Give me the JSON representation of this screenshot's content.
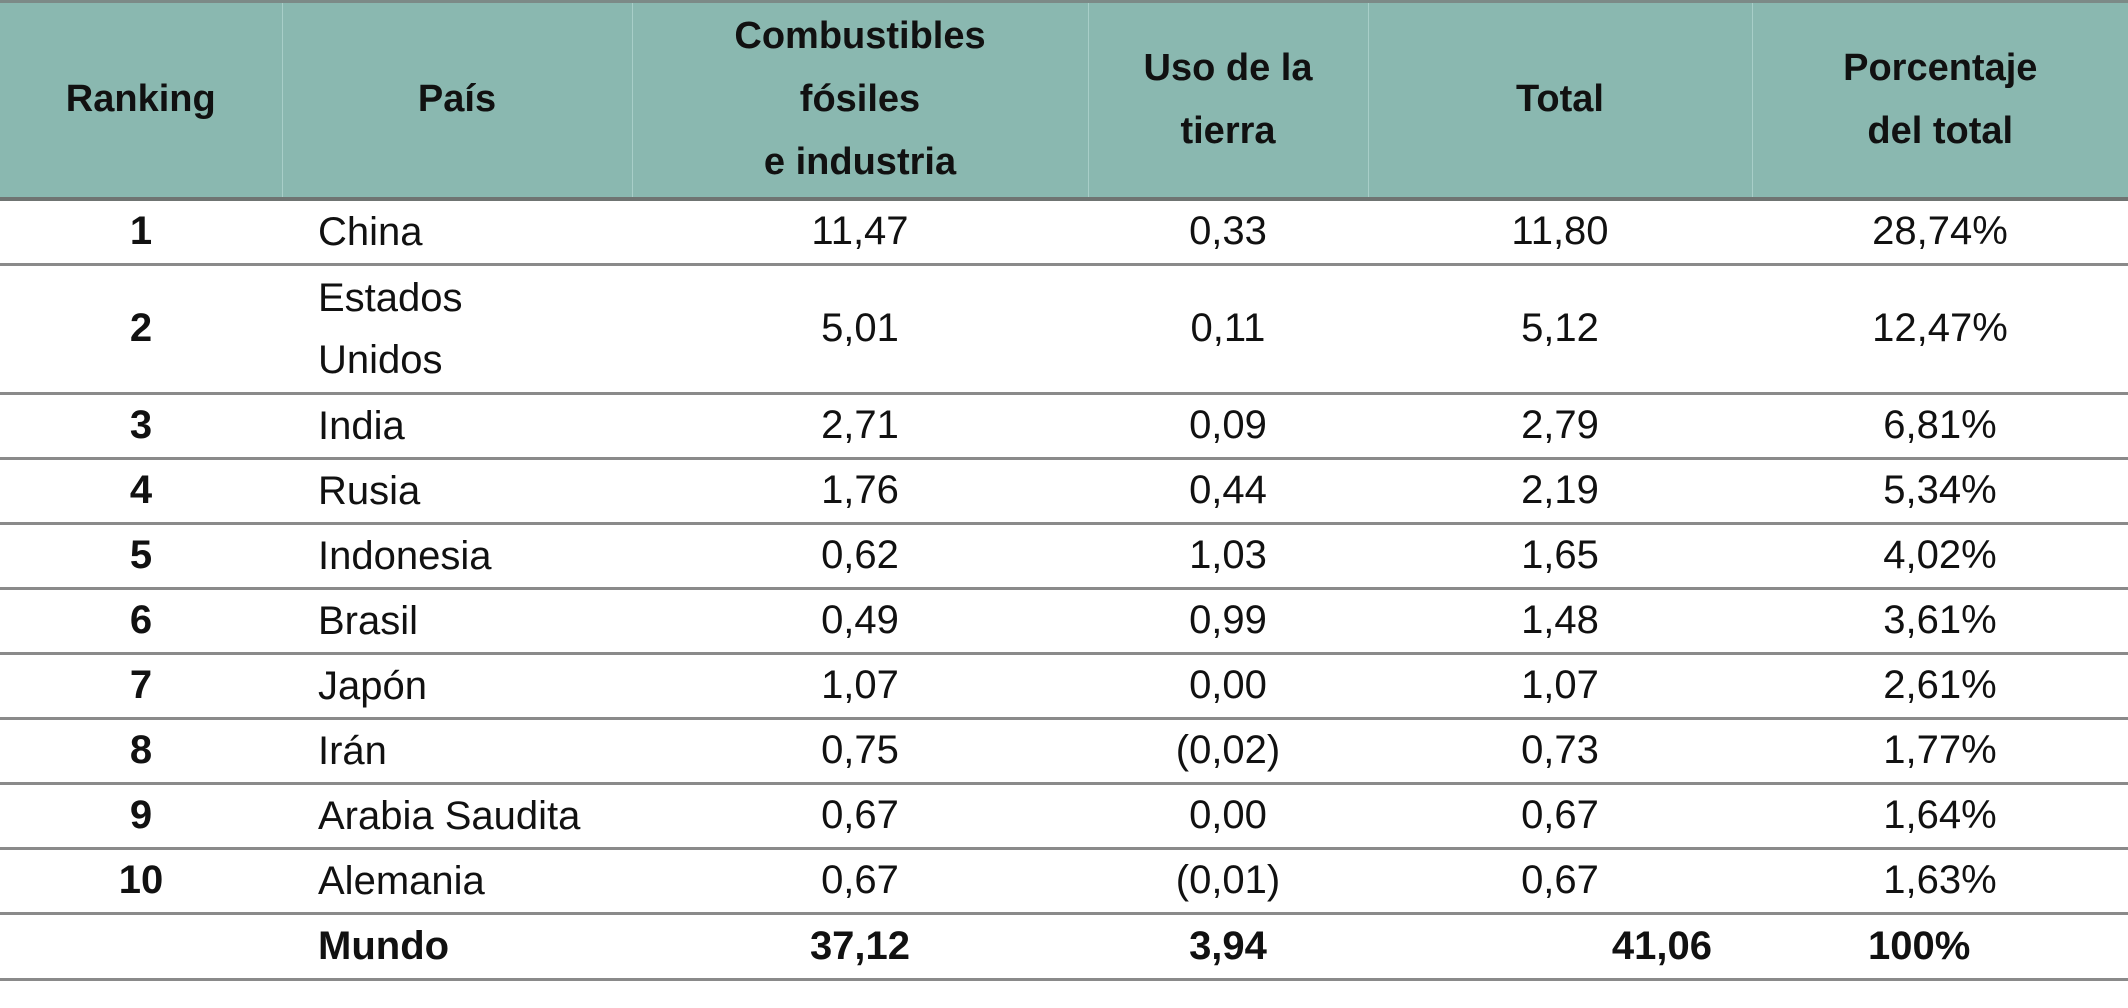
{
  "headers": {
    "ranking": "Ranking",
    "pais": "País",
    "combustibles": [
      "Combustibles",
      "fósiles",
      "e industria"
    ],
    "uso": [
      "Uso de la",
      "tierra"
    ],
    "total": "Total",
    "porcentaje": [
      "Porcentaje",
      "del total"
    ]
  },
  "rows": [
    {
      "rank": "1",
      "pais": [
        "China"
      ],
      "comb": "11,47",
      "uso": "0,33",
      "total": "11,80",
      "pct": "28,74%"
    },
    {
      "rank": "2",
      "pais": [
        "Estados",
        "Unidos"
      ],
      "comb": "5,01",
      "uso": "0,11",
      "total": "5,12",
      "pct": "12,47%"
    },
    {
      "rank": "3",
      "pais": [
        "India"
      ],
      "comb": "2,71",
      "uso": "0,09",
      "total": "2,79",
      "pct": "6,81%"
    },
    {
      "rank": "4",
      "pais": [
        "Rusia"
      ],
      "comb": "1,76",
      "uso": "0,44",
      "total": "2,19",
      "pct": "5,34%"
    },
    {
      "rank": "5",
      "pais": [
        "Indonesia"
      ],
      "comb": "0,62",
      "uso": "1,03",
      "total": "1,65",
      "pct": "4,02%"
    },
    {
      "rank": "6",
      "pais": [
        "Brasil"
      ],
      "comb": "0,49",
      "uso": "0,99",
      "total": "1,48",
      "pct": "3,61%"
    },
    {
      "rank": "7",
      "pais": [
        "Japón"
      ],
      "comb": "1,07",
      "uso": "0,00",
      "total": "1,07",
      "pct": "2,61%"
    },
    {
      "rank": "8",
      "pais": [
        "Irán"
      ],
      "comb": "0,75",
      "uso": "(0,02)",
      "total": "0,73",
      "pct": "1,77%"
    },
    {
      "rank": "9",
      "pais": [
        "Arabia Saudita"
      ],
      "comb": "0,67",
      "uso": "0,00",
      "total": "0,67",
      "pct": "1,64%"
    },
    {
      "rank": "10",
      "pais": [
        "Alemania"
      ],
      "comb": "0,67",
      "uso": "(0,01)",
      "total": "0,67",
      "pct": "1,63%"
    }
  ],
  "world": {
    "rank": "",
    "pais": "Mundo",
    "comb": "37,12",
    "uso": "3,94",
    "total": "41,06",
    "pct": "100%"
  }
}
